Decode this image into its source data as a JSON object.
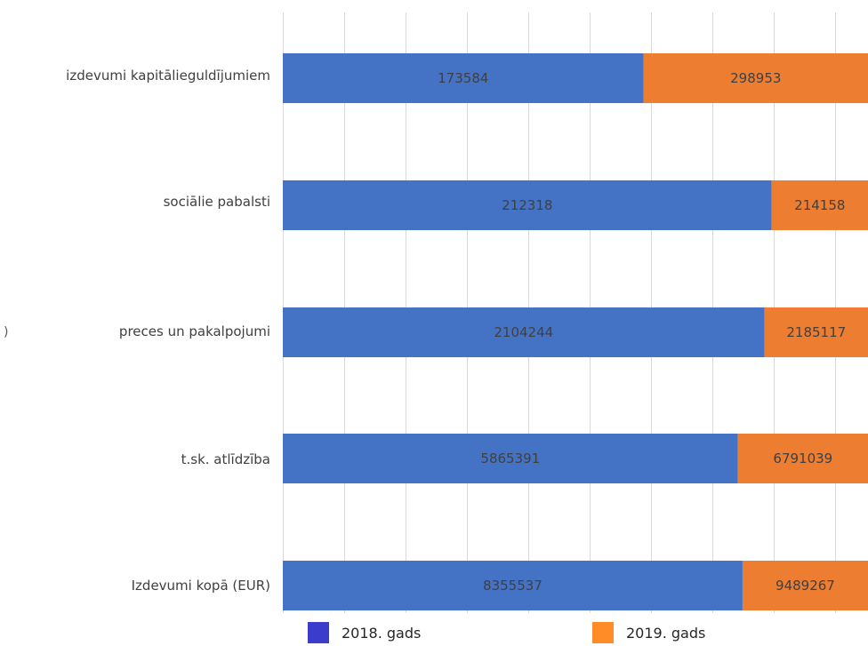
{
  "chart_data": {
    "type": "bar",
    "orientation": "horizontal",
    "stacked": true,
    "categories": [
      "izdevumi kapitālieguldījumiem",
      "sociālie pabalsti",
      "preces un pakalpojumi",
      "t.sk. atlīdzība",
      "Izdevumi kopā (EUR)"
    ],
    "series": [
      {
        "name": "2018. gads",
        "color": "#4472c4",
        "legend_color": "#3c3ccc",
        "values": [
          173584,
          212318,
          2104244,
          5865391,
          8355537
        ]
      },
      {
        "name": "2019. gads",
        "color": "#ed7d31",
        "legend_color": "#ff8c26",
        "values": [
          298953,
          214158,
          2185117,
          6791039,
          9489267
        ]
      }
    ],
    "title": "",
    "xlabel": "",
    "ylabel": "",
    "grid": true,
    "legend_position": "bottom",
    "stray_text": ")"
  }
}
